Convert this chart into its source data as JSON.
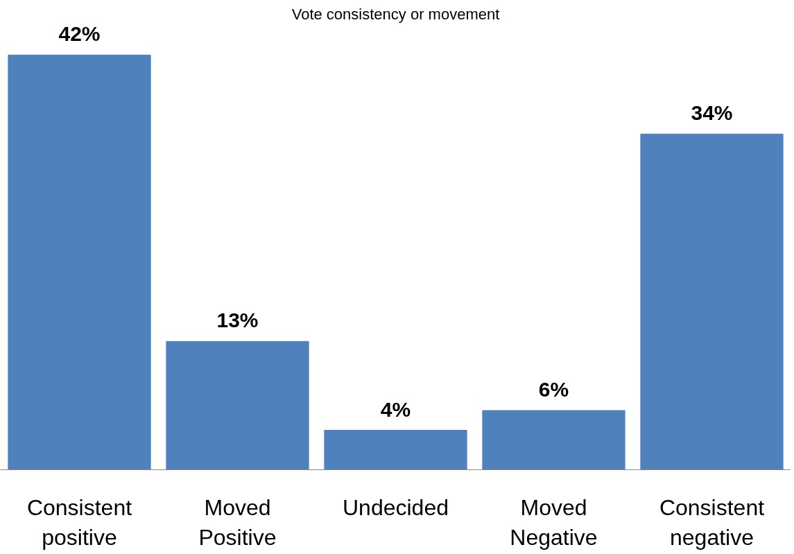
{
  "chart_data": {
    "type": "bar",
    "title": "Vote consistency or movement",
    "categories": [
      "Consistent positive",
      "Moved Positive",
      "Undecided",
      "Moved Negative",
      "Consistent negative"
    ],
    "values": [
      42,
      13,
      4,
      6,
      34
    ],
    "color": "#4f81bd",
    "data_labels": true,
    "value_labels": [
      "42%",
      "13%",
      "4%",
      "6%",
      "34%"
    ]
  }
}
